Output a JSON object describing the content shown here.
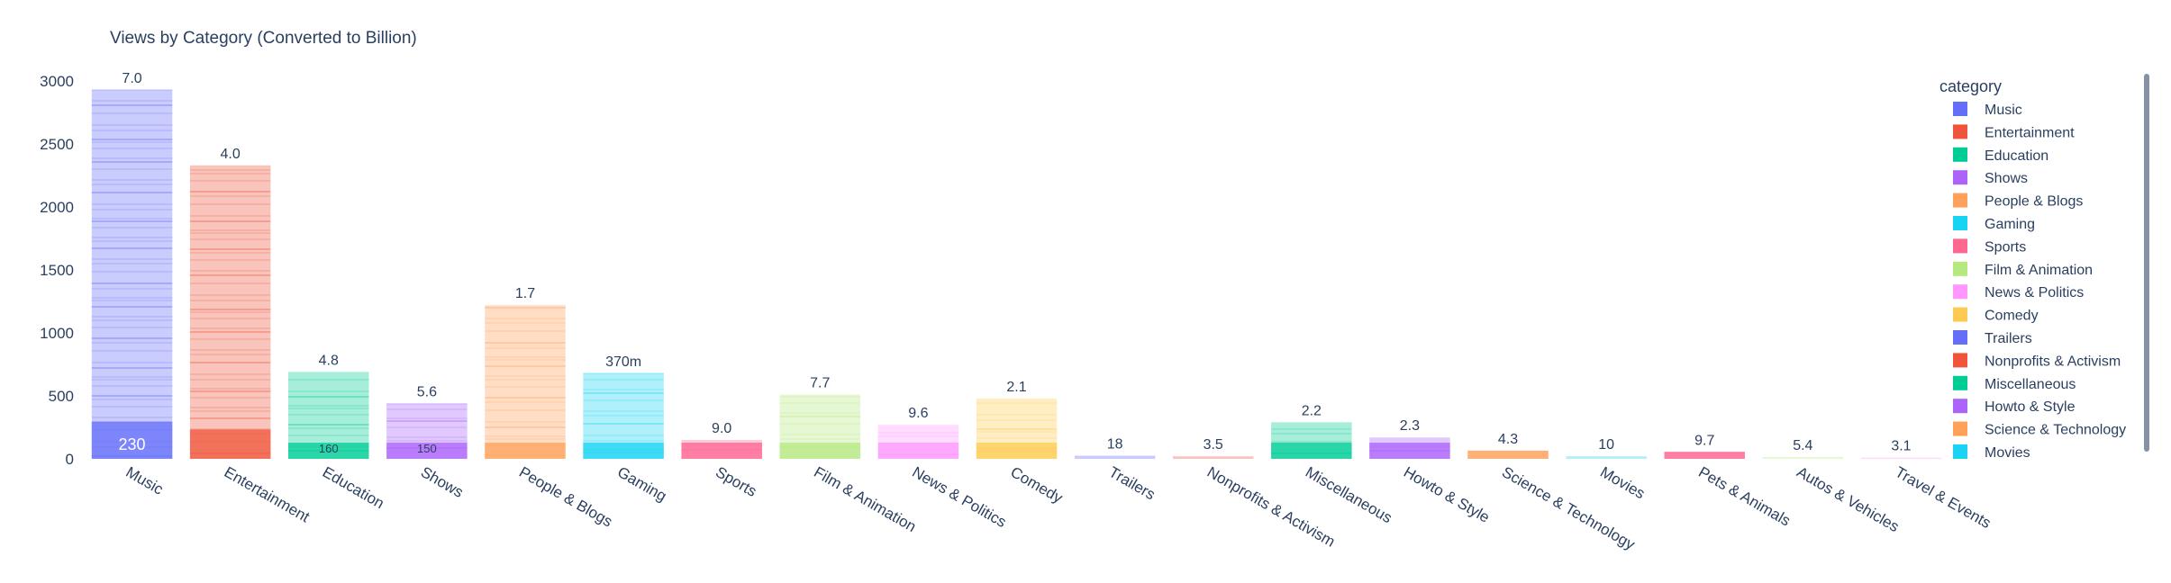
{
  "chart_data": {
    "type": "bar",
    "title": "Views by Category (Converted to Billion)",
    "ylim": [
      0,
      3000
    ],
    "yticks": [
      0,
      500,
      1000,
      1500,
      2000,
      2500,
      3000
    ],
    "legend_title": "category",
    "legend_position": "right",
    "categories": [
      "Music",
      "Entertainment",
      "Education",
      "Shows",
      "People & Blogs",
      "Gaming",
      "Sports",
      "Film & Animation",
      "News & Politics",
      "Comedy",
      "Trailers",
      "Nonprofits & Activism",
      "Miscellaneous",
      "Howto & Style",
      "Science & Technology",
      "Movies",
      "Pets & Animals",
      "Autos & Vehicles",
      "Travel & Events"
    ],
    "values": [
      2930,
      2330,
      690,
      440,
      1220,
      680,
      150,
      510,
      270,
      480,
      25,
      20,
      290,
      170,
      65,
      20,
      55,
      15,
      10
    ],
    "top_labels": [
      "7.0",
      "4.0",
      "4.8",
      "5.6",
      "1.7",
      "370m",
      "9.0",
      "7.7",
      "9.6",
      "2.1",
      "18",
      "3.5",
      "2.2",
      "2.3",
      "4.3",
      "10",
      "9.7",
      "5.4",
      "3.1"
    ],
    "bottom_labels": [
      "230",
      "",
      "160",
      "150",
      "",
      "",
      "",
      "",
      "",
      "",
      "",
      "",
      "",
      "",
      "",
      "",
      "",
      "",
      ""
    ],
    "colors": [
      "#636efa",
      "#EF553B",
      "#00cc96",
      "#ab63fa",
      "#FFA15A",
      "#19d3f3",
      "#FF6692",
      "#B6E880",
      "#FF97FF",
      "#FECB52",
      "#636efa",
      "#EF553B",
      "#00cc96",
      "#ab63fa",
      "#FFA15A",
      "#19d3f3",
      "#FF6692",
      "#B6E880",
      "#FF97FF"
    ],
    "legend_entries": [
      "Music",
      "Entertainment",
      "Education",
      "Shows",
      "People & Blogs",
      "Gaming",
      "Sports",
      "Film & Animation",
      "News & Politics",
      "Comedy",
      "Trailers",
      "Nonprofits & Activism",
      "Miscellaneous",
      "Howto & Style",
      "Science & Technology",
      "Movies"
    ]
  }
}
